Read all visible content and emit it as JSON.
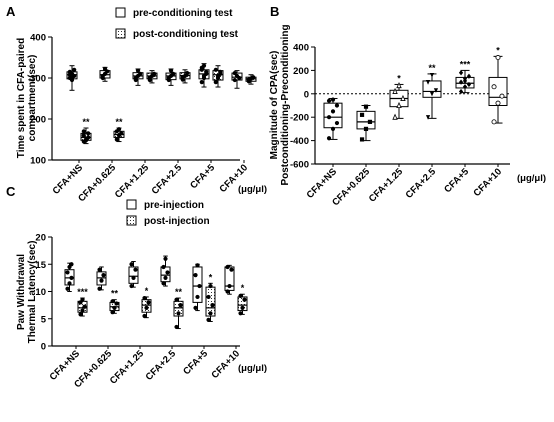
{
  "chart_data": [
    {
      "panel": "A",
      "type": "box",
      "ylabel": "Time spent in CFA-paired compartment(sec)",
      "unit": "(μg/μl)",
      "ylim": [
        100,
        400
      ],
      "yticks": [
        100,
        200,
        300,
        400
      ],
      "legend_position": "top-right",
      "categories": [
        "CFA+NS",
        "CFA+0.625",
        "CFA+1.25",
        "CFA+2.5",
        "CFA+5",
        "CFA+10"
      ],
      "series": [
        {
          "name": "pre-conditioning test",
          "pattern": "open",
          "boxes": [
            {
              "min": 270,
              "q1": 298,
              "median": 308,
              "q3": 315,
              "max": 330,
              "points": [
                300,
                310,
                305,
                315,
                295,
                320,
                308,
                300
              ]
            },
            {
              "min": 292,
              "q1": 300,
              "median": 308,
              "q3": 318,
              "max": 326,
              "points": [
                300,
                310,
                316,
                305,
                322
              ]
            },
            {
              "min": 282,
              "q1": 298,
              "median": 305,
              "q3": 313,
              "max": 322,
              "points": [
                295,
                305,
                310,
                300,
                318
              ]
            },
            {
              "min": 282,
              "q1": 296,
              "median": 305,
              "q3": 312,
              "max": 322,
              "points": [
                295,
                305,
                310,
                300,
                318
              ]
            },
            {
              "min": 278,
              "q1": 298,
              "median": 310,
              "q3": 320,
              "max": 335,
              "points": [
                290,
                305,
                315,
                325,
                300,
                310,
                320,
                330
              ]
            },
            {
              "min": 275,
              "q1": 295,
              "median": 302,
              "q3": 312,
              "max": 318,
              "points": [
                295,
                305,
                300,
                312
              ]
            }
          ]
        },
        {
          "name": "post-conditioning test",
          "pattern": "dotted",
          "boxes": [
            {
              "min": 140,
              "q1": 148,
              "median": 155,
              "q3": 165,
              "max": 178,
              "points": [
                145,
                150,
                155,
                160,
                148,
                165,
                170
              ],
              "stars": "**"
            },
            {
              "min": 145,
              "q1": 155,
              "median": 162,
              "q3": 170,
              "max": 178,
              "points": [
                150,
                160,
                165,
                170,
                175
              ],
              "stars": "**"
            },
            {
              "min": 288,
              "q1": 298,
              "median": 305,
              "q3": 312,
              "max": 318,
              "points": [
                295,
                305,
                310,
                300
              ]
            },
            {
              "min": 288,
              "q1": 298,
              "median": 306,
              "q3": 313,
              "max": 320,
              "points": [
                296,
                305,
                312,
                302
              ]
            },
            {
              "min": 278,
              "q1": 295,
              "median": 308,
              "q3": 318,
              "max": 330,
              "points": [
                290,
                300,
                310,
                320,
                305,
                315
              ]
            },
            {
              "min": 285,
              "q1": 292,
              "median": 298,
              "q3": 302,
              "max": 308,
              "points": [
                292,
                298,
                302,
                296
              ]
            }
          ]
        }
      ]
    },
    {
      "panel": "B",
      "type": "box",
      "ylabel": "Magnitude of CPA(sec) Postconditioning-Preconditioning",
      "unit": "(μg/μl)",
      "ylim": [
        -600,
        400
      ],
      "yticks": [
        -600,
        -400,
        -200,
        0,
        200,
        400
      ],
      "categories": [
        "CFA+NS",
        "CFA+0.625",
        "CFA+1.25",
        "CFA+2.5",
        "CFA+5",
        "CFA+10"
      ],
      "markers": [
        "filled-circle",
        "filled-square",
        "open-triangle",
        "filled-triangle-down",
        "filled-diamond",
        "open-circle"
      ],
      "boxes": [
        {
          "min": -390,
          "q1": -290,
          "median": -200,
          "q3": -80,
          "max": -40,
          "points": [
            -380,
            -300,
            -250,
            -200,
            -150,
            -100,
            -60,
            -50
          ]
        },
        {
          "min": -400,
          "q1": -300,
          "median": -240,
          "q3": -150,
          "max": -100,
          "points": [
            -390,
            -300,
            -240,
            -180,
            -110
          ]
        },
        {
          "min": -210,
          "q1": -110,
          "median": -40,
          "q3": 30,
          "max": 80,
          "points": [
            -200,
            -100,
            -40,
            20,
            70
          ],
          "stars": "*"
        },
        {
          "min": -210,
          "q1": -30,
          "median": 20,
          "q3": 110,
          "max": 170,
          "points": [
            -200,
            0,
            30,
            100,
            160
          ],
          "stars": "**"
        },
        {
          "min": 10,
          "q1": 50,
          "median": 90,
          "q3": 140,
          "max": 200,
          "points": [
            20,
            60,
            80,
            100,
            130,
            150,
            180,
            110
          ],
          "stars": "***"
        },
        {
          "min": -250,
          "q1": -100,
          "median": -30,
          "q3": 140,
          "max": 320,
          "points": [
            -240,
            -80,
            -20,
            60,
            310
          ],
          "stars": "*"
        }
      ]
    },
    {
      "panel": "C",
      "type": "box",
      "ylabel": "Paw Withdrawal Thermal Latency(sec)",
      "unit": "(μg/μl)",
      "ylim": [
        0,
        20
      ],
      "yticks": [
        0,
        5,
        10,
        15,
        20
      ],
      "legend_position": "top-center",
      "categories": [
        "CFA+NS",
        "CFA+0.625",
        "CFA+1.25",
        "CFA+2.5",
        "CFA+5",
        "CFA+10"
      ],
      "series": [
        {
          "name": "pre-injection",
          "pattern": "open",
          "boxes": [
            {
              "min": 10,
              "q1": 11.2,
              "median": 12.5,
              "q3": 14,
              "max": 15.2,
              "points": [
                10.5,
                11.5,
                12.5,
                13.5,
                14.5,
                15
              ]
            },
            {
              "min": 10.3,
              "q1": 11.2,
              "median": 12.5,
              "q3": 13.6,
              "max": 14.5,
              "points": [
                10.5,
                12,
                13,
                14
              ]
            },
            {
              "min": 10.8,
              "q1": 11.5,
              "median": 12.8,
              "q3": 14.5,
              "max": 15.5,
              "points": [
                11,
                12.5,
                14,
                15
              ]
            },
            {
              "min": 11,
              "q1": 11.8,
              "median": 13,
              "q3": 14.5,
              "max": 16.5,
              "points": [
                11.5,
                12.5,
                13.5,
                14.5,
                16
              ]
            },
            {
              "min": 6.5,
              "q1": 8,
              "median": 11,
              "q3": 14.5,
              "max": 15,
              "points": [
                7,
                9,
                11,
                13,
                14.8
              ]
            },
            {
              "min": 9.5,
              "q1": 10.2,
              "median": 11,
              "q3": 14.5,
              "max": 14.8,
              "points": [
                10,
                11,
                14,
                14.5
              ]
            }
          ]
        },
        {
          "name": "post-injection",
          "pattern": "dotted",
          "boxes": [
            {
              "min": 5.5,
              "q1": 6.2,
              "median": 7,
              "q3": 8.2,
              "max": 8.8,
              "points": [
                5.8,
                6.5,
                7.2,
                8,
                8.5
              ],
              "stars": "***"
            },
            {
              "min": 6,
              "q1": 6.5,
              "median": 7.2,
              "q3": 8,
              "max": 8.5,
              "points": [
                6.2,
                7,
                7.8,
                8.2
              ],
              "stars": "**"
            },
            {
              "min": 5.2,
              "q1": 6.2,
              "median": 7.5,
              "q3": 8.5,
              "max": 9,
              "points": [
                5.5,
                7,
                8,
                8.8
              ],
              "stars": "*"
            },
            {
              "min": 3.2,
              "q1": 5.5,
              "median": 7,
              "q3": 8.2,
              "max": 8.8,
              "points": [
                3.5,
                6,
                7.5,
                8.5
              ],
              "stars": "**"
            },
            {
              "min": 4.5,
              "q1": 5.5,
              "median": 7,
              "q3": 10.8,
              "max": 11.5,
              "points": [
                4.8,
                6,
                7.5,
                9,
                11
              ],
              "stars": "*"
            },
            {
              "min": 5.8,
              "q1": 6.5,
              "median": 7.5,
              "q3": 9,
              "max": 9.5,
              "points": [
                6,
                7,
                8.5,
                9.2
              ],
              "stars": "*"
            }
          ]
        }
      ]
    }
  ]
}
